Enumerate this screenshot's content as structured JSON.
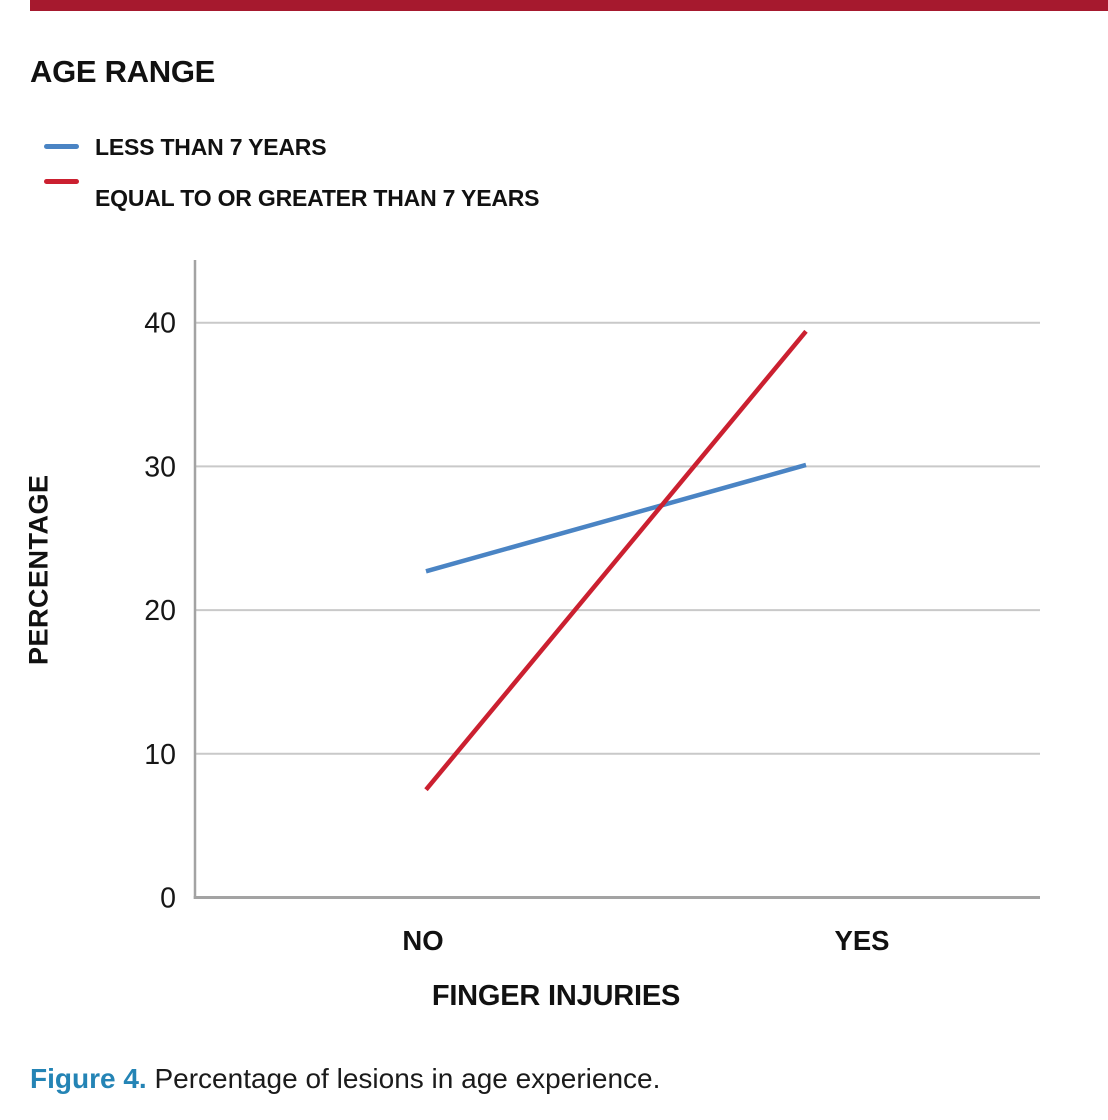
{
  "page": {
    "accent_bar_color": "#a6192e"
  },
  "legend": {
    "title": "AGE RANGE"
  },
  "chart_data": {
    "type": "line",
    "categories": [
      "NO",
      "YES"
    ],
    "series": [
      {
        "name": "LESS THAN 7 YEARS",
        "color": "#4a84c4",
        "values": [
          22.7,
          30.1
        ]
      },
      {
        "name": "EQUAL TO OR GREATER THAN 7 YEARS",
        "color": "#cb2030",
        "values": [
          7.5,
          39.4
        ]
      }
    ],
    "xlabel": "FINGER INJURIES",
    "ylabel": "PERCENTAGE",
    "ylim": [
      0,
      44.4
    ],
    "yticks": [
      0,
      10,
      20,
      30,
      40
    ],
    "grid": "horizontal",
    "legend_position": "top-left",
    "gridline_color": "#c9c9c9",
    "axis_color": "#a3a3a3",
    "tick_label_color": "#161616"
  },
  "caption": {
    "label": "Figure 4.",
    "text": "Percentage of lesions in age experience.",
    "label_color": "#2484b5"
  }
}
